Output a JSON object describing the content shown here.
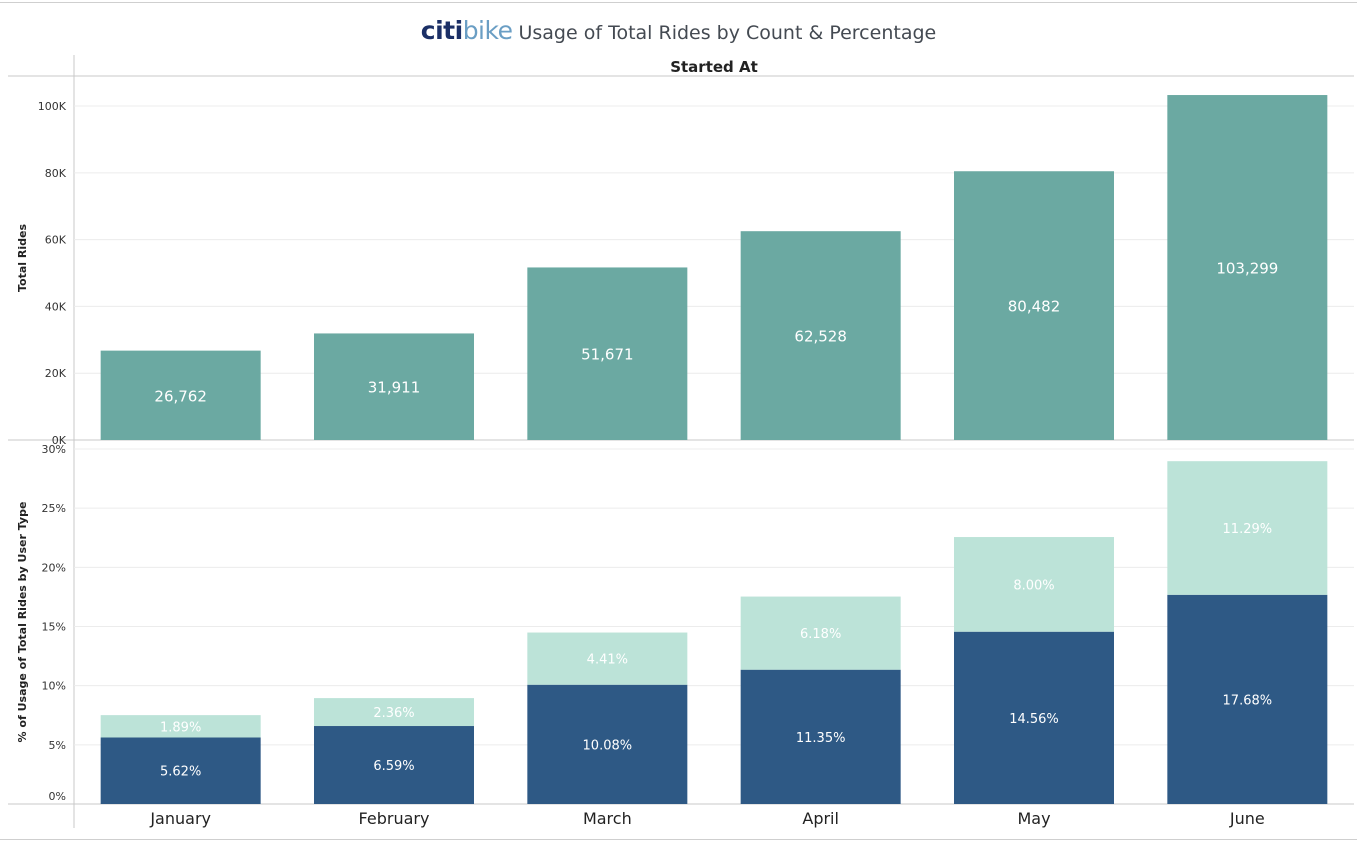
{
  "title": {
    "logo_citi": "citi",
    "logo_bike": "bike",
    "text": "Usage of Total Rides by Count & Percentage"
  },
  "colors": {
    "total_bar": "#6ba9a2",
    "subscriber": "#2e5985",
    "customer": "#bce3d8",
    "grid": "#ececec",
    "axis": "#c8c8c8"
  },
  "chart_data": [
    {
      "type": "bar",
      "header": "Started At",
      "categories": [
        "January",
        "February",
        "March",
        "April",
        "May",
        "June"
      ],
      "values": [
        26762,
        31911,
        51671,
        62528,
        80482,
        103299
      ],
      "value_labels": [
        "26,762",
        "31,911",
        "51,671",
        "62,528",
        "80,482",
        "103,299"
      ],
      "ylabel": "Total Rides",
      "ylim": [
        0,
        109000
      ],
      "yticks": [
        0,
        20000,
        40000,
        60000,
        80000,
        100000
      ],
      "ytick_labels": [
        "0K",
        "20K",
        "40K",
        "60K",
        "80K",
        "100K"
      ],
      "grid": true
    },
    {
      "type": "bar",
      "stacked": true,
      "categories": [
        "January",
        "February",
        "March",
        "April",
        "May",
        "June"
      ],
      "series": [
        {
          "values": [
            5.62,
            6.59,
            10.08,
            11.35,
            14.56,
            17.68
          ],
          "labels": [
            "5.62%",
            "6.59%",
            "10.08%",
            "11.35%",
            "14.56%",
            "17.68%"
          ]
        },
        {
          "values": [
            1.89,
            2.36,
            4.41,
            6.18,
            8.0,
            11.29
          ],
          "labels": [
            "1.89%",
            "2.36%",
            "4.41%",
            "6.18%",
            "8.00%",
            "11.29%"
          ]
        }
      ],
      "ylabel": "% of Usage of Total Rides by User Type",
      "ylim": [
        0,
        30
      ],
      "yticks": [
        0,
        5,
        10,
        15,
        20,
        25,
        30
      ],
      "ytick_labels": [
        "0%",
        "5%",
        "10%",
        "15%",
        "20%",
        "25%",
        "30%"
      ],
      "grid": true
    }
  ]
}
